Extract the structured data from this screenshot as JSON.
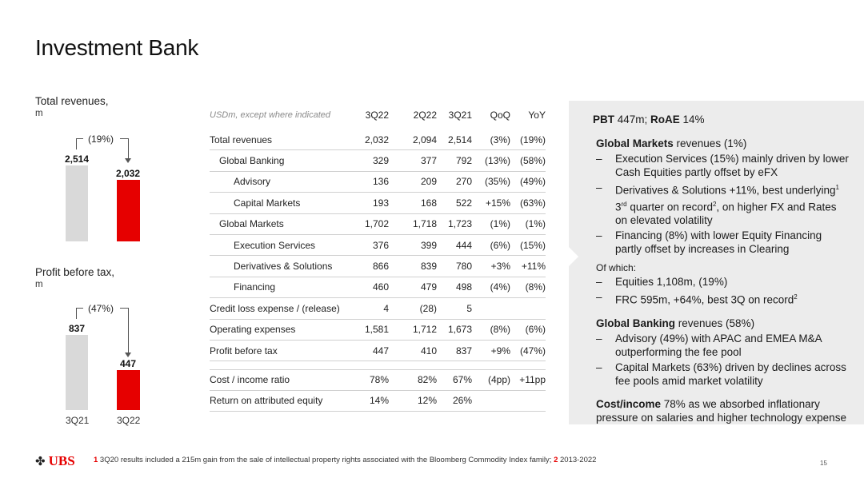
{
  "title": "Investment Bank",
  "revenue_chart": {
    "label": "Total revenues,",
    "unit": "m",
    "change": "(19%)",
    "categories": [
      "3Q21",
      "3Q22"
    ],
    "values": [
      2514,
      2032
    ],
    "value_labels": [
      "2,514",
      "2,032"
    ]
  },
  "pbt_chart": {
    "label": "Profit before tax,",
    "unit": "m",
    "change": "(47%)",
    "categories": [
      "3Q21",
      "3Q22"
    ],
    "values": [
      837,
      447
    ],
    "value_labels": [
      "837",
      "447"
    ],
    "x_labels": [
      "3Q21",
      "3Q22"
    ]
  },
  "table": {
    "note": "USDm, except where indicated",
    "headers": [
      "3Q22",
      "2Q22",
      "3Q21",
      "QoQ",
      "YoY"
    ],
    "rows": [
      {
        "label": "Total revenues",
        "cells": [
          "2,032",
          "2,094",
          "2,514",
          "(3%)",
          "(19%)"
        ]
      },
      {
        "label": "Global Banking",
        "cells": [
          "329",
          "377",
          "792",
          "(13%)",
          "(58%)"
        ]
      },
      {
        "label": "Advisory",
        "cells": [
          "136",
          "209",
          "270",
          "(35%)",
          "(49%)"
        ]
      },
      {
        "label": "Capital Markets",
        "cells": [
          "193",
          "168",
          "522",
          "+15%",
          "(63%)"
        ]
      },
      {
        "label": "Global Markets",
        "cells": [
          "1,702",
          "1,718",
          "1,723",
          "(1%)",
          "(1%)"
        ]
      },
      {
        "label": "Execution Services",
        "cells": [
          "376",
          "399",
          "444",
          "(6%)",
          "(15%)"
        ]
      },
      {
        "label": "Derivatives & Solutions",
        "cells": [
          "866",
          "839",
          "780",
          "+3%",
          "+11%"
        ]
      },
      {
        "label": "Financing",
        "cells": [
          "460",
          "479",
          "498",
          "(4%)",
          "(8%)"
        ]
      },
      {
        "label": "Credit loss expense / (release)",
        "cells": [
          "4",
          "(28)",
          "5",
          "",
          ""
        ]
      },
      {
        "label": "Operating expenses",
        "cells": [
          "1,581",
          "1,712",
          "1,673",
          "(8%)",
          "(6%)"
        ]
      },
      {
        "label": "Profit before tax",
        "cells": [
          "447",
          "410",
          "837",
          "+9%",
          "(47%)"
        ]
      },
      {
        "label": "Cost / income ratio",
        "cells": [
          "78%",
          "82%",
          "67%",
          "(4pp)",
          "+11pp"
        ]
      },
      {
        "label": "Return on attributed equity",
        "cells": [
          "14%",
          "12%",
          "26%",
          "",
          ""
        ]
      }
    ]
  },
  "commentary": {
    "pbt_bold": "PBT",
    "pbt_text": " 447m; ",
    "roae_bold": "RoAE",
    "roae_text": " 14%",
    "gm_bold": "Global Markets",
    "gm_text": " revenues (1%)",
    "gm_items": [
      "Execution Services (15%) mainly driven by lower Cash Equities partly offset by eFX",
      "Derivatives & Solutions +11%, best underlying",
      "Financing (8%) with lower Equity Financing partly offset by increases in Clearing"
    ],
    "gm_item2_sup1": "1",
    "gm_item2_cont_a": " 3",
    "gm_item2_rd": "rd",
    "gm_item2_cont_b": " quarter on record",
    "gm_item2_sup2": "2",
    "gm_item2_cont_c": ", on higher FX and Rates on elevated volatility",
    "of_which": "Of which:",
    "of_which_items": [
      "Equities 1,108m, (19%)",
      "FRC 595m, +64%, best 3Q on record"
    ],
    "frc_sup": "2",
    "gb_bold": "Global Banking",
    "gb_text": " revenues (58%)",
    "gb_items": [
      "Advisory (49%) with APAC and EMEA M&A outperforming the fee pool",
      "Capital Markets (63%) driven by declines across fee pools amid market volatility"
    ],
    "ci_bold": "Cost/income",
    "ci_text": " 78% as we absorbed inflationary pressure on salaries and higher technology expense"
  },
  "footer": {
    "logo": "UBS",
    "note1_num": "1",
    "note1": " 3Q20 results included a 215m gain from the sale of intellectual property rights associated with the Bloomberg Commodity Index family; ",
    "note2_num": "2",
    "note2": " 2013-2022",
    "page": "15"
  },
  "colors": {
    "accent": "#e60000",
    "grey_bar": "#d9d9d9",
    "panel": "#ececec"
  }
}
